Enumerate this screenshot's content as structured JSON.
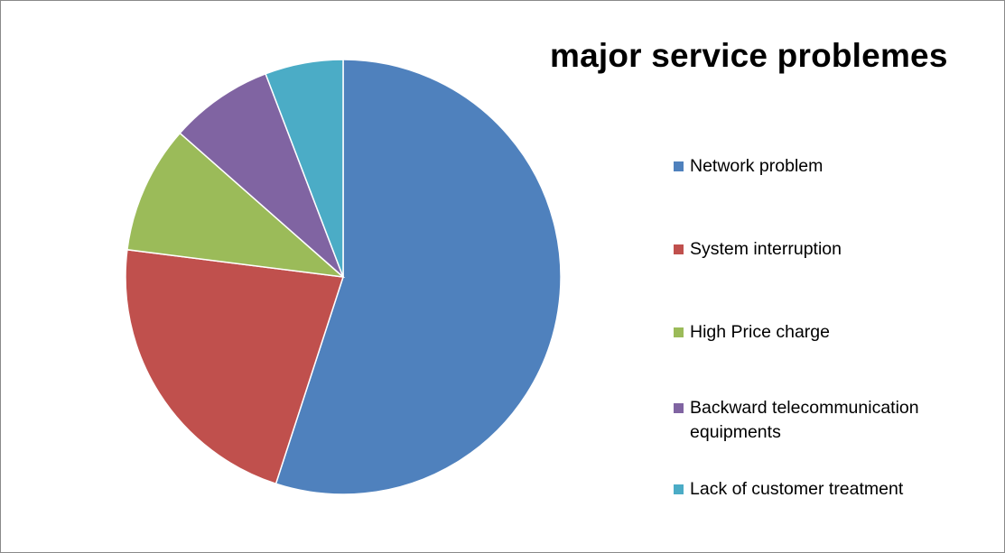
{
  "chart_data": {
    "type": "pie",
    "title": "major service problemes",
    "legend_position": "right",
    "categories": [
      "Network problem",
      "System interruption",
      "High Price charge",
      "Backward telecommunication equipments",
      "Lack of customer treatment"
    ],
    "values": [
      55,
      22,
      9.5,
      7.7,
      5.8
    ],
    "colors": [
      "#4F81BD",
      "#C0504D",
      "#9BBB59",
      "#8064A2",
      "#4BACC6"
    ]
  }
}
